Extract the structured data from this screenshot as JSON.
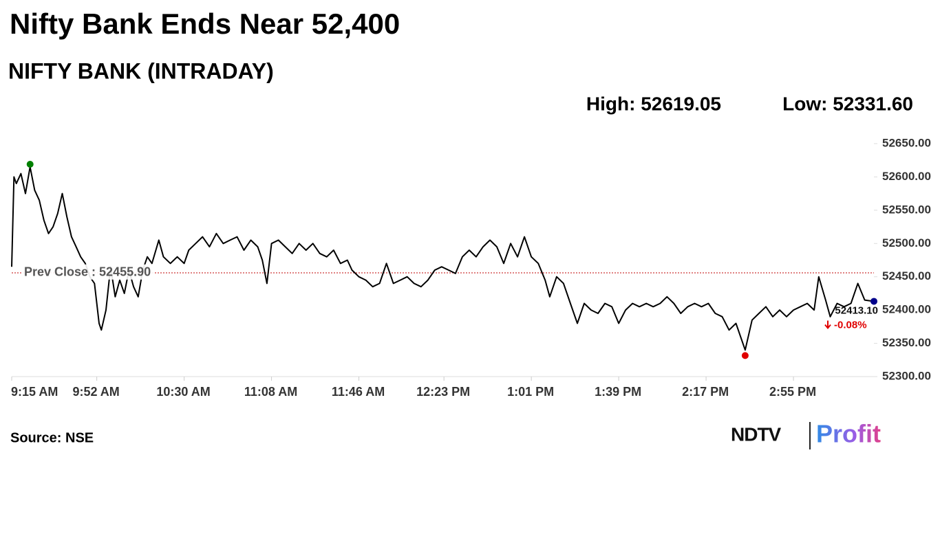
{
  "chart_data": {
    "type": "line",
    "title": "Nifty Bank Ends Near 52,400",
    "subtitle": "NIFTY BANK (INTRADAY)",
    "high": {
      "value": 52619.05,
      "label": "High: 52619.05",
      "x": "9:23 AM",
      "color": "#008000"
    },
    "low": {
      "value": 52331.6,
      "label": "Low: 52331.60",
      "x": "2:34 PM",
      "color": "#e00000"
    },
    "prev_close": {
      "value": 52455.9,
      "label": "Prev Close : 52455.90",
      "color": "#c00000"
    },
    "last": {
      "value": 52413.1,
      "label": "52413.10",
      "x": "3:30 PM",
      "color": "#00008b"
    },
    "change": {
      "value": -0.08,
      "label": "-0.08%",
      "color": "#e00000"
    },
    "source": "Source: NSE",
    "logo": {
      "brand": "NDTV",
      "product": "Profit"
    },
    "x": [
      "9:15 AM",
      "9:16 AM",
      "9:17 AM",
      "9:19 AM",
      "9:21 AM",
      "9:23 AM",
      "9:25 AM",
      "9:27 AM",
      "9:29 AM",
      "9:31 AM",
      "9:33 AM",
      "9:35 AM",
      "9:37 AM",
      "9:39 AM",
      "9:41 AM",
      "9:43 AM",
      "9:45 AM",
      "9:47 AM",
      "9:49 AM",
      "9:51 AM",
      "9:53 AM",
      "9:54 AM",
      "9:56 AM",
      "9:58 AM",
      "10:00 AM",
      "10:02 AM",
      "10:04 AM",
      "10:06 AM",
      "10:08 AM",
      "10:10 AM",
      "10:12 AM",
      "10:14 AM",
      "10:16 AM",
      "10:19 AM",
      "10:21 AM",
      "10:24 AM",
      "10:27 AM",
      "10:30 AM",
      "10:32 AM",
      "10:35 AM",
      "10:38 AM",
      "10:41 AM",
      "10:44 AM",
      "10:47 AM",
      "10:50 AM",
      "10:53 AM",
      "10:56 AM",
      "10:59 AM",
      "11:02 AM",
      "11:04 AM",
      "11:06 AM",
      "11:08 AM",
      "11:11 AM",
      "11:14 AM",
      "11:17 AM",
      "11:20 AM",
      "11:23 AM",
      "11:26 AM",
      "11:29 AM",
      "11:32 AM",
      "11:35 AM",
      "11:38 AM",
      "11:41 AM",
      "11:43 AM",
      "11:46 AM",
      "11:49 AM",
      "11:52 AM",
      "11:55 AM",
      "11:58 AM",
      "12:01 PM",
      "12:04 PM",
      "12:07 PM",
      "12:10 PM",
      "12:13 PM",
      "12:16 PM",
      "12:19 PM",
      "12:22 PM",
      "12:25 PM",
      "12:28 PM",
      "12:31 PM",
      "12:34 PM",
      "12:37 PM",
      "12:40 PM",
      "12:43 PM",
      "12:46 PM",
      "12:49 PM",
      "12:52 PM",
      "12:55 PM",
      "12:58 PM",
      "1:01 PM",
      "1:04 PM",
      "1:07 PM",
      "1:09 PM",
      "1:12 PM",
      "1:15 PM",
      "1:18 PM",
      "1:21 PM",
      "1:24 PM",
      "1:27 PM",
      "1:30 PM",
      "1:33 PM",
      "1:36 PM",
      "1:39 PM",
      "1:42 PM",
      "1:45 PM",
      "1:48 PM",
      "1:51 PM",
      "1:54 PM",
      "1:57 PM",
      "2:00 PM",
      "2:03 PM",
      "2:06 PM",
      "2:09 PM",
      "2:12 PM",
      "2:15 PM",
      "2:18 PM",
      "2:21 PM",
      "2:24 PM",
      "2:27 PM",
      "2:30 PM",
      "2:34 PM",
      "2:37 PM",
      "2:40 PM",
      "2:43 PM",
      "2:46 PM",
      "2:49 PM",
      "2:52 PM",
      "2:55 PM",
      "2:58 PM",
      "3:01 PM",
      "3:04 PM",
      "3:06 PM",
      "3:09 PM",
      "3:11 PM",
      "3:14 PM",
      "3:17 PM",
      "3:20 PM",
      "3:23 PM",
      "3:26 PM",
      "3:30 PM"
    ],
    "series": [
      {
        "name": "NIFTY BANK",
        "color": "#000000",
        "values": [
          52465,
          52600,
          52590,
          52605,
          52575,
          52615,
          52580,
          52565,
          52535,
          52515,
          52525,
          52545,
          52575,
          52540,
          52510,
          52495,
          52480,
          52470,
          52450,
          52440,
          52380,
          52370,
          52400,
          52465,
          52420,
          52445,
          52425,
          52460,
          52435,
          52420,
          52460,
          52480,
          52470,
          52505,
          52480,
          52470,
          52480,
          52470,
          52490,
          52500,
          52510,
          52495,
          52515,
          52500,
          52505,
          52510,
          52490,
          52505,
          52495,
          52475,
          52440,
          52500,
          52505,
          52495,
          52485,
          52500,
          52490,
          52500,
          52485,
          52480,
          52490,
          52470,
          52475,
          52460,
          52450,
          52445,
          52435,
          52440,
          52470,
          52440,
          52445,
          52450,
          52440,
          52435,
          52445,
          52460,
          52465,
          52460,
          52455,
          52480,
          52490,
          52480,
          52495,
          52505,
          52495,
          52470,
          52500,
          52480,
          52510,
          52480,
          52470,
          52445,
          52420,
          52450,
          52440,
          52410,
          52380,
          52410,
          52400,
          52395,
          52410,
          52405,
          52380,
          52400,
          52410,
          52405,
          52410,
          52405,
          52410,
          52420,
          52410,
          52395,
          52405,
          52410,
          52405,
          52410,
          52395,
          52390,
          52370,
          52380,
          52340,
          52385,
          52395,
          52405,
          52390,
          52400,
          52390,
          52400,
          52405,
          52410,
          52400,
          52450,
          52415,
          52390,
          52410,
          52405,
          52410,
          52440,
          52415,
          52413.1
        ]
      }
    ],
    "xlim": [
      "9:15 AM",
      "3:30 PM"
    ],
    "xticks": [
      "9:15 AM",
      "9:52 AM",
      "10:30 AM",
      "11:08 AM",
      "11:46 AM",
      "12:23 PM",
      "1:01 PM",
      "1:39 PM",
      "2:17 PM",
      "2:55 PM"
    ],
    "ylim": [
      52300,
      52650
    ],
    "yticks": [
      {
        "value": 52300,
        "label": "52300.00"
      },
      {
        "value": 52350,
        "label": "52350.00"
      },
      {
        "value": 52400,
        "label": "52400.00"
      },
      {
        "value": 52450,
        "label": "52450.00"
      },
      {
        "value": 52500,
        "label": "52500.00"
      },
      {
        "value": 52550,
        "label": "52550.00"
      },
      {
        "value": 52600,
        "label": "52600.00"
      },
      {
        "value": 52650,
        "label": "52650.00"
      }
    ],
    "grid": false
  }
}
